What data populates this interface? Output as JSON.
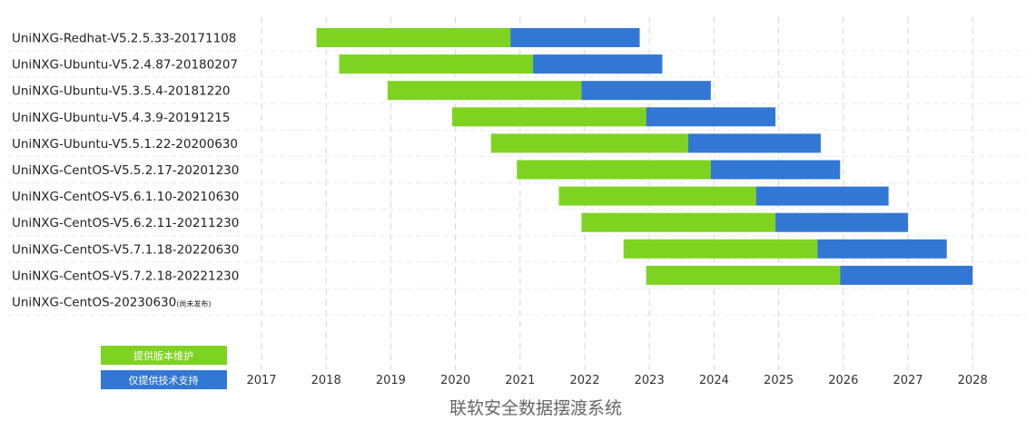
{
  "chart_data": {
    "type": "bar",
    "orientation": "horizontal-stacked-gantt",
    "title": "联软安全数据摆渡系统",
    "xlim": [
      2017,
      2028
    ],
    "x_ticks": [
      "2017",
      "2018",
      "2019",
      "2020",
      "2021",
      "2022",
      "2023",
      "2024",
      "2025",
      "2026",
      "2027",
      "2028"
    ],
    "grid": "vertical dashed at each year",
    "legend_position": "bottom-left",
    "legend": [
      {
        "label": "提供版本维护",
        "color": "#7ed321"
      },
      {
        "label": "仅提供技术支持",
        "color": "#3377d4"
      }
    ],
    "categories": [
      {
        "name": "UniNXG-Redhat-V5.2.5.33-20171108",
        "note": "",
        "start": 2017.85,
        "maintenance_end": 2020.85,
        "support_end": 2022.85
      },
      {
        "name": "UniNXG-Ubuntu-V5.2.4.87-20180207",
        "note": "",
        "start": 2018.2,
        "maintenance_end": 2021.2,
        "support_end": 2023.2
      },
      {
        "name": "UniNXG-Ubuntu-V5.3.5.4-20181220",
        "note": "",
        "start": 2018.95,
        "maintenance_end": 2021.95,
        "support_end": 2023.95
      },
      {
        "name": "UniNXG-Ubuntu-V5.4.3.9-20191215",
        "note": "",
        "start": 2019.95,
        "maintenance_end": 2022.95,
        "support_end": 2024.95
      },
      {
        "name": "UniNXG-Ubuntu-V5.5.1.22-20200630",
        "note": "",
        "start": 2020.55,
        "maintenance_end": 2023.6,
        "support_end": 2025.65
      },
      {
        "name": "UniNXG-CentOS-V5.5.2.17-20201230",
        "note": "",
        "start": 2020.95,
        "maintenance_end": 2023.95,
        "support_end": 2025.95
      },
      {
        "name": "UniNXG-CentOS-V5.6.1.10-20210630",
        "note": "",
        "start": 2021.6,
        "maintenance_end": 2024.65,
        "support_end": 2026.7
      },
      {
        "name": "UniNXG-CentOS-V5.6.2.11-20211230",
        "note": "",
        "start": 2021.95,
        "maintenance_end": 2024.95,
        "support_end": 2027.0
      },
      {
        "name": "UniNXG-CentOS-V5.7.1.18-20220630",
        "note": "",
        "start": 2022.6,
        "maintenance_end": 2025.6,
        "support_end": 2027.6
      },
      {
        "name": "UniNXG-CentOS-V5.7.2.18-20221230",
        "note": "",
        "start": 2022.95,
        "maintenance_end": 2025.95,
        "support_end": 2028.0
      },
      {
        "name": "UniNXG-CentOS-20230630",
        "note": "(尚未发布)",
        "start": null,
        "maintenance_end": null,
        "support_end": null
      }
    ],
    "series": [
      {
        "name": "提供版本维护",
        "color": "#7ed321"
      },
      {
        "name": "仅提供技术支持",
        "color": "#3377d4"
      }
    ]
  }
}
